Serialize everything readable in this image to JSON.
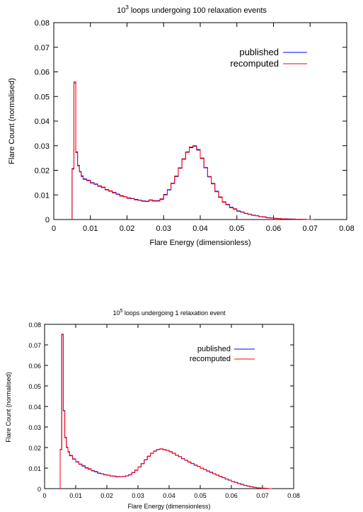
{
  "chart_data": [
    {
      "type": "line",
      "title_base": "10",
      "title_sup": "3",
      "title_rest": " loops undergoing 100 relaxation events",
      "xlabel": "Flare Energy (dimensionless)",
      "ylabel": "Flare Count (normalised)",
      "xlim": [
        0,
        0.08
      ],
      "ylim": [
        0,
        0.08
      ],
      "xticks": [
        "0",
        "0.01",
        "0.02",
        "0.03",
        "0.04",
        "0.05",
        "0.06",
        "0.07",
        "0.08"
      ],
      "yticks": [
        "0",
        "0.01",
        "0.02",
        "0.03",
        "0.04",
        "0.05",
        "0.06",
        "0.07",
        "0.08"
      ],
      "legend_position": "top-right",
      "series": [
        {
          "name": "published",
          "color": "#0000ff",
          "x": [
            0.005,
            0.0055,
            0.006,
            0.0065,
            0.007,
            0.0075,
            0.008,
            0.009,
            0.01,
            0.011,
            0.012,
            0.013,
            0.014,
            0.015,
            0.016,
            0.017,
            0.018,
            0.019,
            0.02,
            0.021,
            0.022,
            0.023,
            0.024,
            0.025,
            0.026,
            0.027,
            0.028,
            0.029,
            0.03,
            0.031,
            0.032,
            0.033,
            0.034,
            0.035,
            0.036,
            0.037,
            0.038,
            0.039,
            0.04,
            0.041,
            0.042,
            0.043,
            0.044,
            0.045,
            0.046,
            0.047,
            0.048,
            0.049,
            0.05,
            0.051,
            0.052,
            0.053,
            0.054,
            0.055,
            0.056,
            0.057,
            0.058,
            0.059,
            0.06,
            0.061,
            0.062,
            0.063,
            0.064,
            0.065,
            0.066,
            0.067,
            0.068,
            0.069,
            0.07
          ],
          "values": [
            0.0205,
            0.0555,
            0.0275,
            0.022,
            0.0195,
            0.0175,
            0.0165,
            0.0158,
            0.015,
            0.0143,
            0.0137,
            0.013,
            0.0122,
            0.0115,
            0.011,
            0.0102,
            0.0097,
            0.0092,
            0.0088,
            0.0085,
            0.0082,
            0.0078,
            0.0076,
            0.0073,
            0.008,
            0.0075,
            0.0077,
            0.0082,
            0.0102,
            0.012,
            0.0148,
            0.0175,
            0.021,
            0.0245,
            0.0275,
            0.0292,
            0.0298,
            0.0282,
            0.025,
            0.021,
            0.0175,
            0.0145,
            0.0115,
            0.009,
            0.0072,
            0.006,
            0.005,
            0.0042,
            0.0035,
            0.003,
            0.0025,
            0.0021,
            0.0018,
            0.0015,
            0.0012,
            0.001,
            0.0008,
            0.0006,
            0.0005,
            0.0004,
            0.0003,
            0.0003,
            0.0002,
            0.0002,
            0.0001,
            0.0001,
            0.0001,
            0.0,
            0.0
          ]
        },
        {
          "name": "recomputed",
          "color": "#ff0000",
          "x": [
            0.005,
            0.0055,
            0.006,
            0.0065,
            0.007,
            0.0075,
            0.008,
            0.009,
            0.01,
            0.011,
            0.012,
            0.013,
            0.014,
            0.015,
            0.016,
            0.017,
            0.018,
            0.019,
            0.02,
            0.021,
            0.022,
            0.023,
            0.024,
            0.025,
            0.026,
            0.027,
            0.028,
            0.029,
            0.03,
            0.031,
            0.032,
            0.033,
            0.034,
            0.035,
            0.036,
            0.037,
            0.038,
            0.039,
            0.04,
            0.041,
            0.042,
            0.043,
            0.044,
            0.045,
            0.046,
            0.047,
            0.048,
            0.049,
            0.05,
            0.051,
            0.052,
            0.053,
            0.054,
            0.055,
            0.056,
            0.057,
            0.058,
            0.059,
            0.06,
            0.061,
            0.062,
            0.063,
            0.064,
            0.065,
            0.066,
            0.067,
            0.068,
            0.069,
            0.07
          ],
          "values": [
            0.0208,
            0.056,
            0.0272,
            0.0218,
            0.0193,
            0.0178,
            0.0163,
            0.016,
            0.0148,
            0.0145,
            0.0135,
            0.0132,
            0.012,
            0.0117,
            0.0108,
            0.0104,
            0.0095,
            0.0093,
            0.0086,
            0.0086,
            0.008,
            0.0079,
            0.0074,
            0.0075,
            0.0078,
            0.0077,
            0.0075,
            0.0084,
            0.01,
            0.0122,
            0.0146,
            0.0177,
            0.0208,
            0.0247,
            0.0273,
            0.0295,
            0.03,
            0.0285,
            0.0248,
            0.0212,
            0.0173,
            0.0147,
            0.0113,
            0.0092,
            0.007,
            0.0062,
            0.0048,
            0.0044,
            0.0033,
            0.0031,
            0.0024,
            0.0022,
            0.0017,
            0.0016,
            0.0011,
            0.0011,
            0.0007,
            0.0007,
            0.0004,
            0.0004,
            0.0003,
            0.0002,
            0.0002,
            0.0001,
            0.0001,
            0.0001,
            0.0,
            0.0,
            0.0
          ]
        }
      ]
    },
    {
      "type": "line",
      "title_base": "10",
      "title_sup": "5",
      "title_rest": " loops undergoing 1 relaxation event",
      "xlabel": "Flare Energy (dimensionless)",
      "ylabel": "Flare Count (normalised)",
      "xlim": [
        0,
        0.08
      ],
      "ylim": [
        0,
        0.08
      ],
      "xticks": [
        "0",
        "0.01",
        "0.02",
        "0.03",
        "0.04",
        "0.05",
        "0.06",
        "0.07",
        "0.08"
      ],
      "yticks": [
        "0",
        "0.01",
        "0.02",
        "0.03",
        "0.04",
        "0.05",
        "0.06",
        "0.07",
        "0.08"
      ],
      "legend_position": "top-right",
      "series": [
        {
          "name": "published",
          "color": "#0000ff",
          "x": [
            0.005,
            0.0055,
            0.006,
            0.0065,
            0.007,
            0.0075,
            0.008,
            0.009,
            0.01,
            0.011,
            0.012,
            0.013,
            0.014,
            0.015,
            0.016,
            0.017,
            0.018,
            0.019,
            0.02,
            0.021,
            0.022,
            0.023,
            0.024,
            0.025,
            0.026,
            0.027,
            0.028,
            0.029,
            0.03,
            0.031,
            0.032,
            0.033,
            0.034,
            0.035,
            0.036,
            0.037,
            0.038,
            0.039,
            0.04,
            0.041,
            0.042,
            0.043,
            0.044,
            0.045,
            0.046,
            0.047,
            0.048,
            0.049,
            0.05,
            0.051,
            0.052,
            0.053,
            0.054,
            0.055,
            0.056,
            0.057,
            0.058,
            0.059,
            0.06,
            0.061,
            0.062,
            0.063,
            0.064,
            0.065,
            0.066,
            0.067,
            0.068,
            0.069,
            0.07,
            0.071,
            0.072
          ],
          "values": [
            0.019,
            0.075,
            0.038,
            0.025,
            0.02,
            0.018,
            0.016,
            0.0145,
            0.013,
            0.012,
            0.011,
            0.0102,
            0.0095,
            0.0088,
            0.0082,
            0.0076,
            0.0072,
            0.0068,
            0.0065,
            0.0062,
            0.006,
            0.0058,
            0.0058,
            0.0059,
            0.0062,
            0.0068,
            0.0078,
            0.009,
            0.0105,
            0.0122,
            0.014,
            0.0158,
            0.0172,
            0.0183,
            0.019,
            0.0193,
            0.019,
            0.0186,
            0.018,
            0.0172,
            0.0163,
            0.0155,
            0.0146,
            0.0138,
            0.013,
            0.0122,
            0.0115,
            0.0108,
            0.01,
            0.0093,
            0.0086,
            0.0079,
            0.0073,
            0.0066,
            0.006,
            0.0053,
            0.0047,
            0.0041,
            0.0035,
            0.003,
            0.0025,
            0.002,
            0.0016,
            0.0012,
            0.0009,
            0.0006,
            0.0004,
            0.0003,
            0.0002,
            0.0001,
            0.0
          ]
        },
        {
          "name": "recomputed",
          "color": "#ff0000",
          "x": [
            0.005,
            0.0055,
            0.006,
            0.0065,
            0.007,
            0.0075,
            0.008,
            0.009,
            0.01,
            0.011,
            0.012,
            0.013,
            0.014,
            0.015,
            0.016,
            0.017,
            0.018,
            0.019,
            0.02,
            0.021,
            0.022,
            0.023,
            0.024,
            0.025,
            0.026,
            0.027,
            0.028,
            0.029,
            0.03,
            0.031,
            0.032,
            0.033,
            0.034,
            0.035,
            0.036,
            0.037,
            0.038,
            0.039,
            0.04,
            0.041,
            0.042,
            0.043,
            0.044,
            0.045,
            0.046,
            0.047,
            0.048,
            0.049,
            0.05,
            0.051,
            0.052,
            0.053,
            0.054,
            0.055,
            0.056,
            0.057,
            0.058,
            0.059,
            0.06,
            0.061,
            0.062,
            0.063,
            0.064,
            0.065,
            0.066,
            0.067,
            0.068,
            0.069,
            0.07,
            0.071,
            0.072
          ],
          "values": [
            0.0192,
            0.0752,
            0.0378,
            0.0248,
            0.0202,
            0.0178,
            0.0162,
            0.0143,
            0.0132,
            0.0118,
            0.0112,
            0.01,
            0.0097,
            0.0086,
            0.0084,
            0.0074,
            0.0073,
            0.0067,
            0.0066,
            0.0061,
            0.0061,
            0.0057,
            0.0059,
            0.0058,
            0.0063,
            0.0067,
            0.0079,
            0.0089,
            0.0106,
            0.0121,
            0.0141,
            0.0157,
            0.0173,
            0.0182,
            0.0191,
            0.0194,
            0.0189,
            0.0187,
            0.0179,
            0.0173,
            0.0162,
            0.0156,
            0.0145,
            0.0139,
            0.0129,
            0.0123,
            0.0114,
            0.0109,
            0.0099,
            0.0094,
            0.0085,
            0.008,
            0.0072,
            0.0067,
            0.0059,
            0.0054,
            0.0046,
            0.0042,
            0.0034,
            0.0031,
            0.0024,
            0.0021,
            0.0015,
            0.0013,
            0.0008,
            0.0007,
            0.0003,
            0.0003,
            0.0001,
            0.0001,
            0.0
          ]
        }
      ]
    }
  ]
}
